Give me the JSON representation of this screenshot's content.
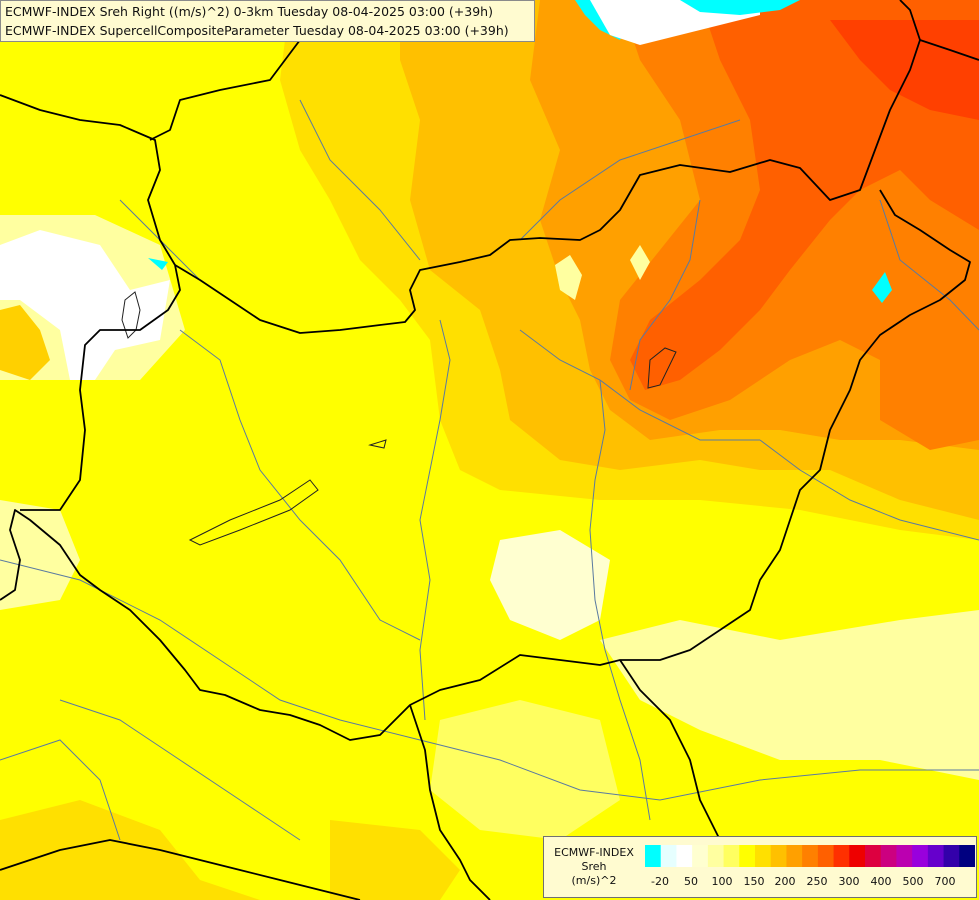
{
  "title": {
    "line1": "ECMWF-INDEX Sreh Right ((m/s)^2) 0-3km Tuesday 08-04-2025 03:00 (+39h)",
    "line2": "ECMWF-INDEX SupercellCompositeParameter Tuesday 08-04-2025 03:00 (+39h)"
  },
  "legend": {
    "line1": "ECMWF-INDEX",
    "line2": "Sreh",
    "line3": "(m/s)^2",
    "ticks": [
      "-20",
      "50",
      "100",
      "150",
      "200",
      "250",
      "300",
      "400",
      "500",
      "700"
    ],
    "colors": [
      "#00ffff",
      "#e6ffff",
      "#ffffff",
      "#ffffd0",
      "#ffffa0",
      "#ffff60",
      "#ffff00",
      "#ffe000",
      "#ffc000",
      "#ffa000",
      "#ff8000",
      "#ff6000",
      "#ff3000",
      "#ee0000",
      "#dd0040",
      "#cc0080",
      "#bb00b0",
      "#9900dd",
      "#6600cc",
      "#3300aa",
      "#000080"
    ]
  }
}
